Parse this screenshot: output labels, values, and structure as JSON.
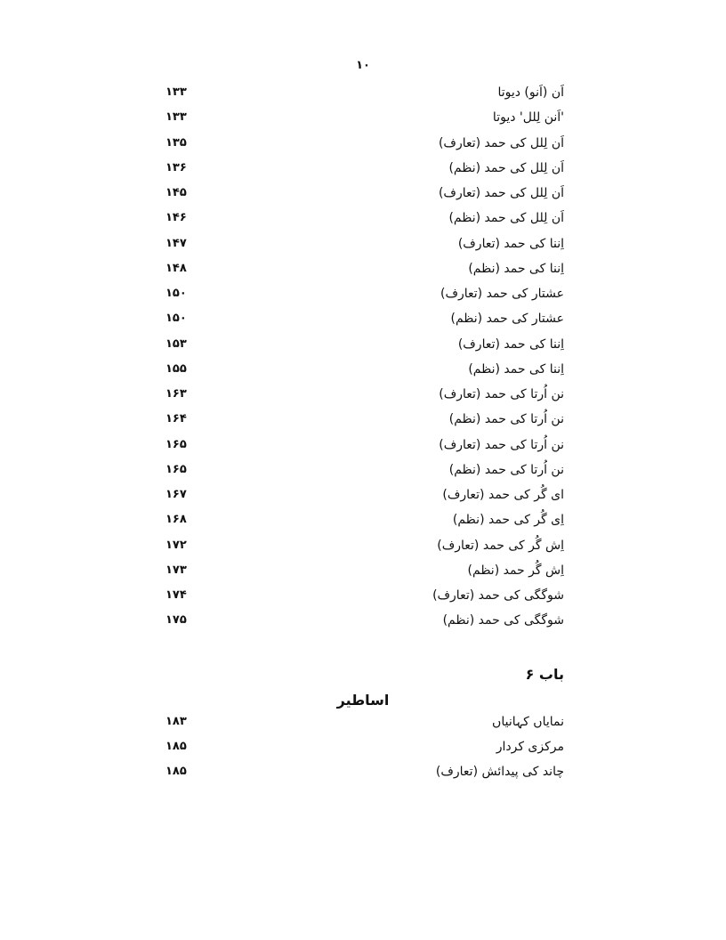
{
  "page_number": "۱۰",
  "entries": [
    {
      "title": "اَن (اَنو) دیوتا",
      "page": "۱۳۳"
    },
    {
      "title": "'اَنن لِلل' دیوتا",
      "page": "۱۳۳"
    },
    {
      "title": "اَن لِلل کی حمد (تعارف)",
      "page": "۱۳۵"
    },
    {
      "title": "اَن لِلل کی حمد (نظم)",
      "page": "۱۳۶"
    },
    {
      "title": "اَن لِلل کی حمد (تعارف)",
      "page": "۱۴۵"
    },
    {
      "title": "اَن لِلل کی حمد (نظم)",
      "page": "۱۴۶"
    },
    {
      "title": "اِننا کی حمد (تعارف)",
      "page": "۱۴۷"
    },
    {
      "title": "اِننا کی حمد (نظم)",
      "page": "۱۴۸"
    },
    {
      "title": "عشتار کی حمد (تعارف)",
      "page": "۱۵۰"
    },
    {
      "title": "عشتار کی حمد (نظم)",
      "page": "۱۵۰"
    },
    {
      "title": "اِننا کی حمد (تعارف)",
      "page": "۱۵۳"
    },
    {
      "title": "اِننا کی حمد (نظم)",
      "page": "۱۵۵"
    },
    {
      "title": "نن اُرتا کی حمد (تعارف)",
      "page": "۱۶۳"
    },
    {
      "title": "نن اُرتا کی حمد (نظم)",
      "page": "۱۶۴"
    },
    {
      "title": "نن اُرتا کی حمد (تعارف)",
      "page": "۱۶۵"
    },
    {
      "title": "نن اُرتا کی حمد (نظم)",
      "page": "۱۶۵"
    },
    {
      "title": "ای گُر کی حمد (تعارف)",
      "page": "۱۶۷"
    },
    {
      "title": "اِی گُر کی حمد (نظم)",
      "page": "۱۶۸"
    },
    {
      "title": "اِش گُر کی حمد (تعارف)",
      "page": "۱۷۲"
    },
    {
      "title": "اِش گُر حمد (نظم)",
      "page": "۱۷۳"
    },
    {
      "title": "شوگگی کی حمد (تعارف)",
      "page": "۱۷۴"
    },
    {
      "title": "شوگگی کی حمد (نظم)",
      "page": "۱۷۵"
    }
  ],
  "chapter": {
    "label": "باب ۶",
    "section_title": "اساطیر",
    "entries": [
      {
        "title": "نمایاں کہانیاں",
        "page": "۱۸۳"
      },
      {
        "title": "مرکزی کردار",
        "page": "۱۸۵"
      },
      {
        "title": "چاند کی پیدائش (تعارف)",
        "page": "۱۸۵"
      }
    ]
  }
}
